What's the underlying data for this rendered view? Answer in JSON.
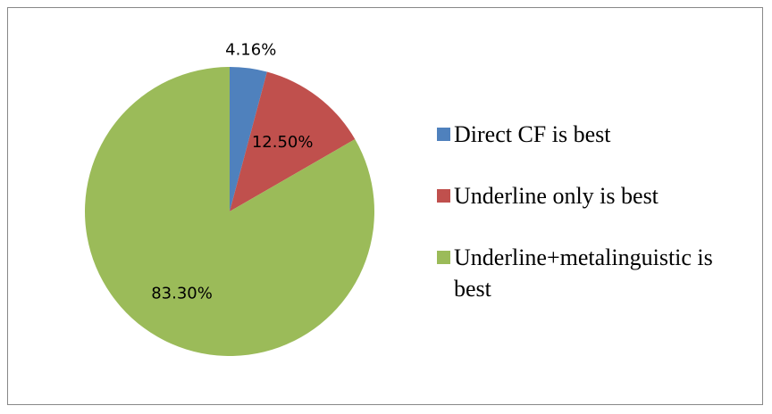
{
  "chart_data": {
    "type": "pie",
    "categories": [
      "Direct CF is best",
      "Underline only is best",
      "Underline+metalinguistic is best"
    ],
    "values": [
      4.16,
      12.5,
      83.3
    ],
    "value_labels": [
      "4.16%",
      "12.50%",
      "83.30%"
    ],
    "colors": [
      "#4f81bd",
      "#c0504d",
      "#9bbb59"
    ],
    "legend": "right"
  }
}
